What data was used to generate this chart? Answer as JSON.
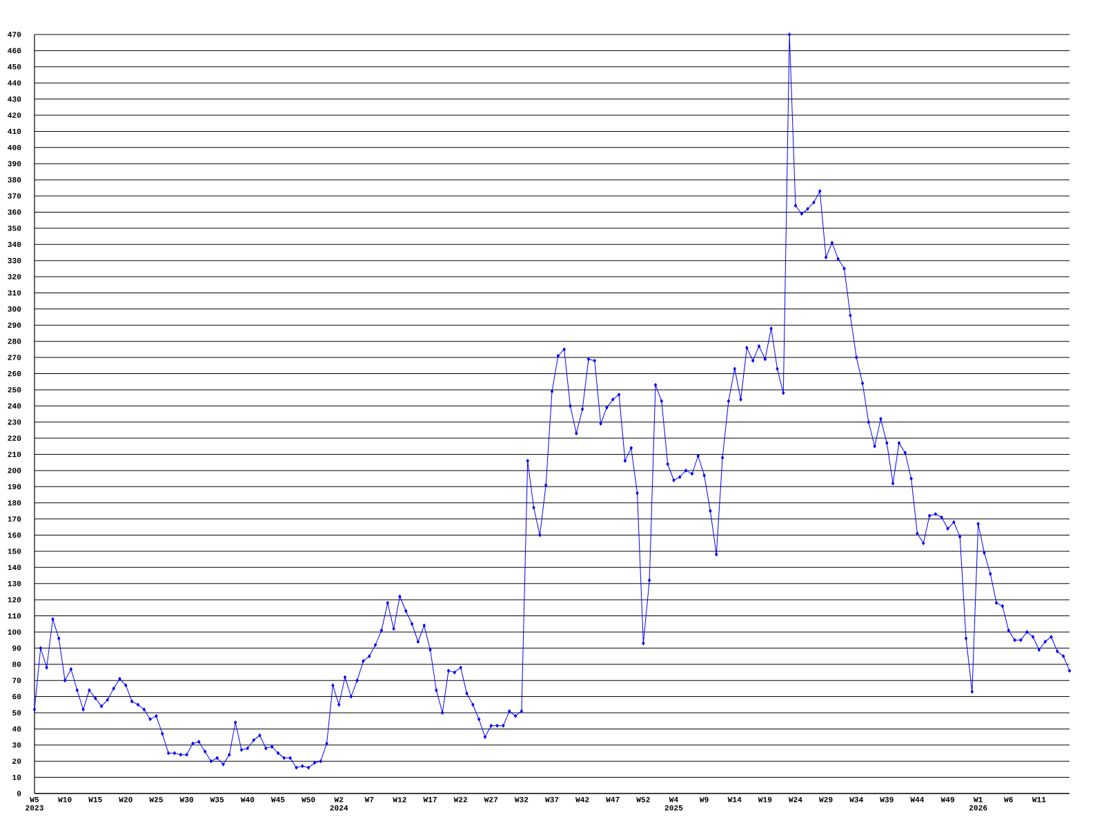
{
  "chart_data": {
    "type": "line",
    "categories": [
      "W5 2023",
      null,
      null,
      null,
      null,
      "W10",
      null,
      null,
      null,
      null,
      "W15",
      null,
      null,
      null,
      null,
      "W20",
      null,
      null,
      null,
      null,
      "W25",
      null,
      null,
      null,
      null,
      "W30",
      null,
      null,
      null,
      null,
      "W35",
      null,
      null,
      null,
      null,
      "W40",
      null,
      null,
      null,
      null,
      "W45",
      null,
      null,
      null,
      null,
      "W50",
      null,
      null,
      null,
      null,
      "W2 2024",
      null,
      null,
      null,
      null,
      "W7",
      null,
      null,
      null,
      null,
      "W12",
      null,
      null,
      null,
      null,
      "W17",
      null,
      null,
      null,
      null,
      "W22",
      null,
      null,
      null,
      null,
      "W27",
      null,
      null,
      null,
      null,
      "W32",
      null,
      null,
      null,
      null,
      "W37",
      null,
      null,
      null,
      null,
      "W42",
      null,
      null,
      null,
      null,
      "W47",
      null,
      null,
      null,
      null,
      "W52",
      null,
      null,
      null,
      null,
      "W4 2025",
      null,
      null,
      null,
      null,
      "W9",
      null,
      null,
      null,
      null,
      "W14",
      null,
      null,
      null,
      null,
      "W19",
      null,
      null,
      null,
      null,
      "W24",
      null,
      null,
      null,
      null,
      "W29",
      null,
      null,
      null,
      null,
      "W34",
      null,
      null,
      null,
      null,
      "W39",
      null,
      null,
      null,
      null,
      "W44",
      null,
      null,
      null,
      null,
      "W49",
      null,
      null,
      null,
      null,
      "W1 2026",
      null,
      null,
      null,
      null,
      "W6",
      null,
      null,
      null,
      null,
      "W11",
      null,
      null,
      null,
      null,
      null
    ],
    "series": [
      {
        "color": "#0000ff",
        "values": [
          52,
          90,
          78,
          108,
          96,
          70,
          77,
          64,
          52,
          64,
          59,
          54,
          58,
          65,
          71,
          67,
          57,
          55,
          52,
          46,
          48,
          37,
          25,
          25,
          24,
          24,
          31,
          32,
          26,
          20,
          22,
          18,
          24,
          44,
          27,
          28,
          33,
          36,
          28,
          29,
          25,
          22,
          22,
          16,
          17,
          16,
          19,
          20,
          31,
          67,
          55,
          72,
          60,
          70,
          82,
          85,
          92,
          101,
          118,
          102,
          122,
          113,
          105,
          94,
          104,
          89,
          64,
          50,
          76,
          75,
          78,
          62,
          55,
          46,
          35,
          42,
          42,
          42,
          51,
          48,
          51,
          206,
          177,
          160,
          191,
          249,
          271,
          275,
          240,
          223,
          238,
          269,
          268,
          229,
          239,
          244,
          247,
          206,
          214,
          186,
          93,
          132,
          253,
          243,
          204,
          194,
          196,
          200,
          198,
          209,
          197,
          175,
          148,
          208,
          243,
          263,
          244,
          276,
          268,
          277,
          269,
          288,
          263,
          248,
          470,
          364,
          359,
          362,
          366,
          373,
          332,
          341,
          331,
          325,
          296,
          270,
          254,
          230,
          215,
          232,
          217,
          192,
          217,
          211,
          195,
          161,
          155,
          172,
          173,
          171,
          164,
          168,
          159,
          96,
          63,
          167,
          149,
          136,
          118,
          116,
          101,
          95,
          95,
          100,
          97,
          89,
          94,
          97,
          88,
          85,
          76
        ]
      }
    ],
    "ylim": [
      0,
      470
    ],
    "yticks": [
      0,
      10,
      20,
      30,
      40,
      50,
      60,
      70,
      80,
      90,
      100,
      110,
      120,
      130,
      140,
      150,
      160,
      170,
      180,
      190,
      200,
      210,
      220,
      230,
      240,
      250,
      260,
      270,
      280,
      290,
      300,
      310,
      320,
      330,
      340,
      350,
      360,
      370,
      380,
      390,
      400,
      410,
      420,
      430,
      440,
      450,
      460,
      470
    ],
    "grid": "y",
    "marker": "diamond",
    "line_style": "solid"
  }
}
